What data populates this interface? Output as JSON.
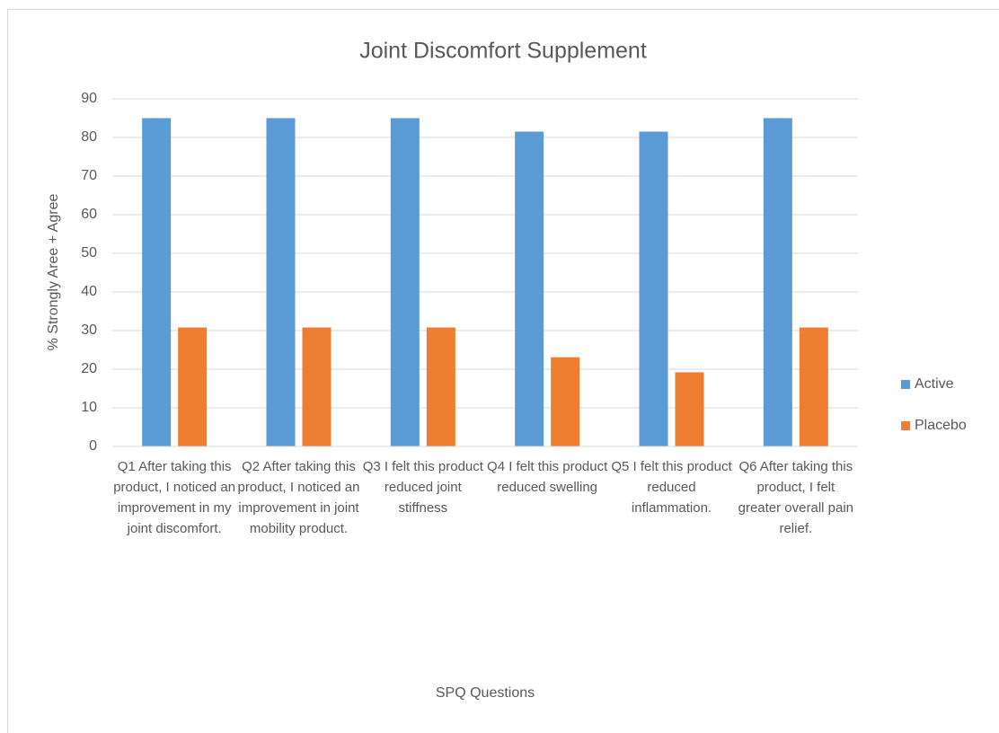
{
  "chart_data": {
    "type": "bar",
    "title": "Joint Discomfort Supplement",
    "x_label": "SPQ Questions",
    "y_label": "% Strongly Aree + Agree",
    "categories": [
      "Q1 After taking this product, I noticed an improvement in my joint discomfort.",
      "Q2 After taking this product, I noticed an improvement in joint mobility product.",
      "Q3 I felt this product reduced joint stiffness",
      "Q4 I felt this product reduced swelling",
      "Q5 I felt this product reduced inflammation.",
      "Q6 After taking this product, I felt greater overall pain relief."
    ],
    "series": [
      {
        "name": "Active",
        "color": "#5b9bd5",
        "values": [
          85,
          85,
          85,
          81.5,
          81.5,
          85
        ]
      },
      {
        "name": "Placebo",
        "color": "#ed7d31",
        "values": [
          30.8,
          30.8,
          30.8,
          23.1,
          19.2,
          30.8
        ]
      }
    ],
    "ylim": [
      0,
      90
    ],
    "yticks": [
      0,
      10,
      20,
      30,
      40,
      50,
      60,
      70,
      80,
      90
    ],
    "grid": true,
    "legend": "right"
  }
}
